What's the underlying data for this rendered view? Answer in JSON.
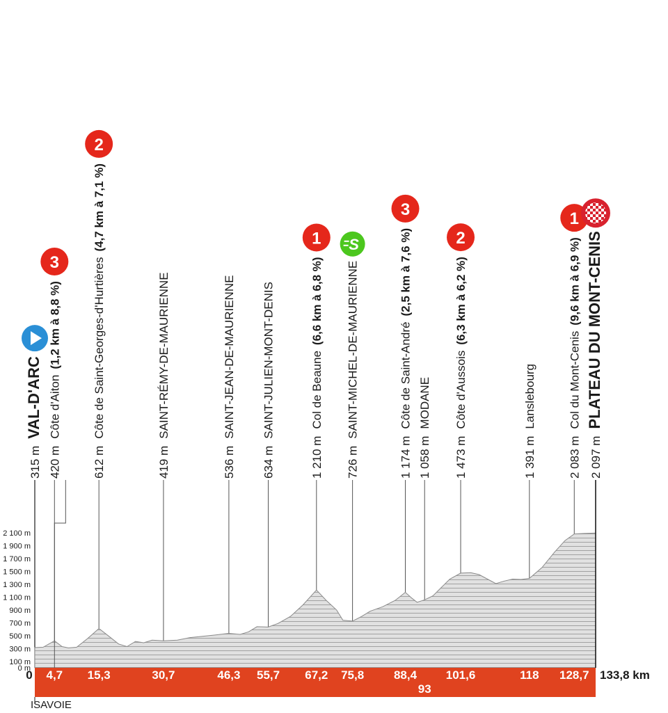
{
  "colors": {
    "profile_fill": "#e1e1e1",
    "profile_hatch": "#9a9a9a",
    "bar": "#e0431f",
    "climb_badge": "#e5271b",
    "start_badge": "#2a8fd6",
    "sprint_badge": "#4cc71e",
    "finish_badge": "#d8222e"
  },
  "region_label": "ISAVOIE",
  "chart_data": {
    "type": "area",
    "xlabel": "",
    "ylabel": "",
    "xlim": [
      0,
      133.8
    ],
    "ylim": [
      0,
      2100
    ],
    "y_ticks": [
      "0 m",
      "100 m",
      "300 m",
      "500 m",
      "700 m",
      "900 m",
      "1 100 m",
      "1 300 m",
      "1 500 m",
      "1 700 m",
      "1 900 m",
      "2 100 m"
    ],
    "y_tick_values": [
      0,
      100,
      300,
      500,
      700,
      900,
      1100,
      1300,
      1500,
      1700,
      1900,
      2100
    ],
    "x_ticks": [
      "0",
      "4,7",
      "15,3",
      "30,7",
      "46,3",
      "55,7",
      "67,2",
      "75,8",
      "88,4",
      "93",
      "101,6",
      "118",
      "128,7",
      "133,8 km"
    ],
    "x_tick_values": [
      0,
      4.7,
      15.3,
      30.7,
      46.3,
      55.7,
      67.2,
      75.8,
      88.4,
      93,
      101.6,
      118,
      128.7,
      133.8
    ],
    "profile": [
      {
        "x": 0,
        "y": 315
      },
      {
        "x": 2,
        "y": 320
      },
      {
        "x": 4.7,
        "y": 420
      },
      {
        "x": 6.5,
        "y": 330
      },
      {
        "x": 8,
        "y": 310
      },
      {
        "x": 10,
        "y": 320
      },
      {
        "x": 12.5,
        "y": 450
      },
      {
        "x": 15.3,
        "y": 612
      },
      {
        "x": 17.5,
        "y": 500
      },
      {
        "x": 20,
        "y": 370
      },
      {
        "x": 22,
        "y": 330
      },
      {
        "x": 24,
        "y": 410
      },
      {
        "x": 26,
        "y": 390
      },
      {
        "x": 28,
        "y": 430
      },
      {
        "x": 30.7,
        "y": 419
      },
      {
        "x": 34,
        "y": 430
      },
      {
        "x": 37,
        "y": 470
      },
      {
        "x": 40,
        "y": 490
      },
      {
        "x": 43,
        "y": 510
      },
      {
        "x": 46.3,
        "y": 536
      },
      {
        "x": 49,
        "y": 520
      },
      {
        "x": 51,
        "y": 560
      },
      {
        "x": 53,
        "y": 640
      },
      {
        "x": 55.7,
        "y": 634
      },
      {
        "x": 58,
        "y": 690
      },
      {
        "x": 61,
        "y": 800
      },
      {
        "x": 64,
        "y": 980
      },
      {
        "x": 67.2,
        "y": 1210
      },
      {
        "x": 69.5,
        "y": 1050
      },
      {
        "x": 72,
        "y": 900
      },
      {
        "x": 73.5,
        "y": 740
      },
      {
        "x": 75.8,
        "y": 726
      },
      {
        "x": 78,
        "y": 800
      },
      {
        "x": 80,
        "y": 880
      },
      {
        "x": 83,
        "y": 950
      },
      {
        "x": 86,
        "y": 1050
      },
      {
        "x": 88.4,
        "y": 1174
      },
      {
        "x": 90,
        "y": 1080
      },
      {
        "x": 91.2,
        "y": 1020
      },
      {
        "x": 93,
        "y": 1058
      },
      {
        "x": 95,
        "y": 1120
      },
      {
        "x": 97,
        "y": 1250
      },
      {
        "x": 99,
        "y": 1380
      },
      {
        "x": 101.6,
        "y": 1473
      },
      {
        "x": 104,
        "y": 1480
      },
      {
        "x": 106,
        "y": 1450
      },
      {
        "x": 108,
        "y": 1380
      },
      {
        "x": 110,
        "y": 1310
      },
      {
        "x": 112,
        "y": 1350
      },
      {
        "x": 114,
        "y": 1380
      },
      {
        "x": 116,
        "y": 1375
      },
      {
        "x": 118,
        "y": 1391
      },
      {
        "x": 121,
        "y": 1560
      },
      {
        "x": 124,
        "y": 1800
      },
      {
        "x": 126.5,
        "y": 1980
      },
      {
        "x": 128.7,
        "y": 2083
      },
      {
        "x": 131,
        "y": 2090
      },
      {
        "x": 133.8,
        "y": 2097
      }
    ],
    "landmarks": [
      {
        "km": 0,
        "alt": "315 m",
        "name": "VAL-D'ARC",
        "climb": "",
        "style": "big",
        "badge": "start",
        "badge_text": ""
      },
      {
        "km": 4.7,
        "alt": "420 m",
        "name": "Côte d'Aiton",
        "climb": "(1,2 km à 8,8 %)",
        "style": "normal",
        "badge": "climb",
        "badge_text": "3"
      },
      {
        "km": 15.3,
        "alt": "612 m",
        "name": "Côte de Saint-Georges-d'Hurtières",
        "climb": "(4,7 km à 7,1 %)",
        "style": "normal",
        "badge": "climb",
        "badge_text": "2"
      },
      {
        "km": 30.7,
        "alt": "419 m",
        "name": "SAINT-RÉMY-DE-MAURIENNE",
        "climb": "",
        "style": "normal",
        "badge": "",
        "badge_text": ""
      },
      {
        "km": 46.3,
        "alt": "536 m",
        "name": "SAINT-JEAN-DE-MAURIENNE",
        "climb": "",
        "style": "normal",
        "badge": "",
        "badge_text": ""
      },
      {
        "km": 55.7,
        "alt": "634 m",
        "name": "SAINT-JULIEN-MONT-DENIS",
        "climb": "",
        "style": "normal",
        "badge": "",
        "badge_text": ""
      },
      {
        "km": 67.2,
        "alt": "1 210 m",
        "name": "Col de Beaune",
        "climb": "(6,6 km à 6,8 %)",
        "style": "normal",
        "badge": "climb",
        "badge_text": "1"
      },
      {
        "km": 75.8,
        "alt": "726 m",
        "name": "SAINT-MICHEL-DE-MAURIENNE",
        "climb": "",
        "style": "normal",
        "badge": "sprint",
        "badge_text": "S"
      },
      {
        "km": 88.4,
        "alt": "1 174 m",
        "name": "Côte de Saint-André",
        "climb": "(2,5 km à 7,6 %)",
        "style": "normal",
        "badge": "climb",
        "badge_text": "3"
      },
      {
        "km": 93,
        "alt": "1 058 m",
        "name": "MODANE",
        "climb": "",
        "style": "normal",
        "badge": "",
        "badge_text": ""
      },
      {
        "km": 101.6,
        "alt": "1 473 m",
        "name": "Côte d'Aussois",
        "climb": "(6,3 km à 6,2 %)",
        "style": "normal",
        "badge": "climb",
        "badge_text": "2"
      },
      {
        "km": 118,
        "alt": "1 391 m",
        "name": "Lanslebourg",
        "climb": "",
        "style": "normal",
        "badge": "",
        "badge_text": ""
      },
      {
        "km": 128.7,
        "alt": "2 083 m",
        "name": "Col du Mont-Cenis",
        "climb": "(9,6 km à 6,9 %)",
        "style": "normal",
        "badge": "climb",
        "badge_text": "1"
      },
      {
        "km": 133.8,
        "alt": "2 097 m",
        "name": "PLATEAU DU MONT-CENIS",
        "climb": "",
        "style": "big",
        "badge": "finish",
        "badge_text": ""
      }
    ]
  }
}
